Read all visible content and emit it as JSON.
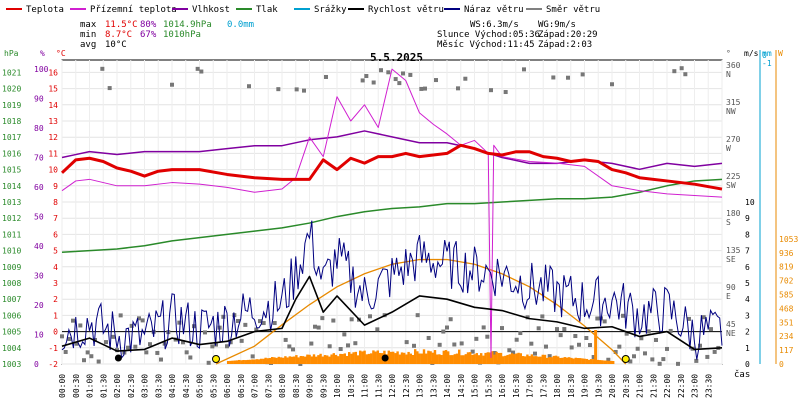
{
  "chart_data": {
    "type": "line",
    "title": "5.5.2025",
    "legend": [
      {
        "name": "Teplota",
        "color": "#e00000"
      },
      {
        "name": "Přízemní teplota",
        "color": "#d020d0"
      },
      {
        "name": "Vlhkost",
        "color": "#8000a0"
      },
      {
        "name": "Tlak",
        "color": "#2a8a2a"
      },
      {
        "name": "Srážky",
        "color": "#00a0d0"
      },
      {
        "name": "Rychlost větru",
        "color": "#000000"
      },
      {
        "name": "Náraz větru",
        "color": "#000080"
      },
      {
        "name": "Směr větru",
        "color": "#808080"
      }
    ],
    "stats": {
      "max": {
        "label": "max",
        "temp": "11.5°C",
        "hum": "80%",
        "press": "1014.9hPa",
        "rain": "0.0mm"
      },
      "min": {
        "label": "min",
        "temp": "8.7°C",
        "hum": "67%",
        "press": "1010hPa"
      },
      "avg": {
        "label": "avg",
        "temp": "10°C"
      }
    },
    "info": {
      "ws": "WS:6.3m/s",
      "wg": "WG:9m/s",
      "sun": "Slunce Východ:05:36",
      "sun_set": "Západ:20:29",
      "moon": "Měsíc Východ:11:45",
      "moon_set": "Západ:2:03"
    },
    "axis_units": {
      "hpa": "hPa",
      "pct": "%",
      "deg": "°C",
      "deg_right": "°",
      "ms": "m/s",
      "mm": "mm",
      "w": "W",
      "x": "čas"
    },
    "pressure_ticks": [
      "1003",
      "1004",
      "1005",
      "1006",
      "1007",
      "1008",
      "1009",
      "1010",
      "1011",
      "1012",
      "1013",
      "1014",
      "1015",
      "1016",
      "1017",
      "1018",
      "1019",
      "1020",
      "1021"
    ],
    "humidity_ticks": [
      "0",
      "10",
      "20",
      "30",
      "40",
      "50",
      "60",
      "70",
      "80",
      "90",
      "100"
    ],
    "temp_ticks": [
      "-2",
      "-1",
      "0",
      "1",
      "2",
      "3",
      "4",
      "5",
      "6",
      "7",
      "8",
      "9",
      "10",
      "11",
      "12",
      "13",
      "14",
      "15",
      "16"
    ],
    "dir_ticks": [
      {
        "v": "360",
        "l": "N"
      },
      {
        "v": "315",
        "l": "NW"
      },
      {
        "v": "270",
        "l": "W"
      },
      {
        "v": "225",
        "l": "SW"
      },
      {
        "v": "180",
        "l": "S"
      },
      {
        "v": "135",
        "l": "SE"
      },
      {
        "v": "90",
        "l": "E"
      },
      {
        "v": "45",
        "l": "NE"
      }
    ],
    "ms_ticks": [
      "0",
      "1",
      "2",
      "3",
      "4",
      "5",
      "6",
      "7",
      "8",
      "9",
      "10"
    ],
    "mm_ticks": [
      "0",
      "-1"
    ],
    "w_ticks": [
      "0",
      "117",
      "234",
      "351",
      "468",
      "585",
      "702",
      "819",
      "936",
      "1053"
    ],
    "time_labels": [
      "00:00",
      "00:30",
      "01:00",
      "01:30",
      "02:00",
      "02:30",
      "03:00",
      "03:30",
      "04:00",
      "04:30",
      "05:00",
      "05:30",
      "06:00",
      "06:30",
      "07:00",
      "07:30",
      "08:00",
      "08:30",
      "09:00",
      "09:30",
      "10:00",
      "10:30",
      "11:00",
      "11:30",
      "12:00",
      "12:30",
      "13:00",
      "13:30",
      "14:00",
      "14:30",
      "15:00",
      "15:30",
      "16:00",
      "16:30",
      "17:00",
      "17:30",
      "18:00",
      "18:30",
      "19:00",
      "19:30",
      "20:00",
      "20:30",
      "21:00",
      "21:30",
      "22:00",
      "22:30",
      "23:00",
      "23:30"
    ],
    "series": {
      "teplota": {
        "color": "#e00000",
        "x": [
          0,
          0.5,
          1,
          1.5,
          2,
          2.5,
          3,
          3.5,
          4,
          5,
          6,
          7,
          8,
          9,
          9.5,
          10,
          10.5,
          11,
          11.5,
          12,
          12.5,
          13,
          14,
          14.5,
          15,
          15.5,
          16,
          16.5,
          17,
          17.5,
          18,
          18.5,
          19,
          19.5,
          20,
          20.5,
          21,
          22,
          23,
          24
        ],
        "y": [
          9.8,
          10.6,
          10.7,
          10.5,
          10.1,
          9.9,
          9.6,
          9.9,
          10.0,
          10.0,
          9.7,
          9.5,
          9.4,
          9.4,
          10.6,
          10.0,
          10.7,
          10.4,
          10.8,
          10.8,
          11.0,
          10.8,
          11.0,
          11.5,
          11.3,
          11.0,
          10.9,
          11.1,
          11.1,
          10.8,
          10.7,
          10.5,
          10.6,
          10.5,
          10.0,
          9.8,
          9.5,
          9.3,
          9.1,
          8.8
        ]
      },
      "prizemni": {
        "color": "#d020d0",
        "x": [
          0,
          0.5,
          1,
          2,
          3,
          4,
          5,
          6,
          7,
          8,
          8.5,
          9,
          9.5,
          10,
          10.5,
          11,
          11.5,
          12,
          12.5,
          13,
          13.5,
          14,
          14.5,
          15,
          15.5,
          15.6,
          15.7,
          16,
          17,
          18,
          19,
          20,
          21,
          22,
          23,
          24
        ],
        "y": [
          8.7,
          9.3,
          9.4,
          9.0,
          9.0,
          9.2,
          9.1,
          8.9,
          8.6,
          8.8,
          9.5,
          12.0,
          10.8,
          14.5,
          13.0,
          14.0,
          12.6,
          16.2,
          15.5,
          13.5,
          12.8,
          12.2,
          11.5,
          11.8,
          11.0,
          -1.6,
          11.5,
          10.8,
          10.5,
          10.4,
          10.2,
          9.0,
          8.7,
          8.5,
          8.4,
          8.3
        ]
      },
      "vlhkost": {
        "color": "#8000a0",
        "x": [
          0,
          0.5,
          1,
          2,
          3,
          4,
          5,
          6,
          7,
          8,
          9,
          10,
          11,
          12,
          13,
          14,
          15,
          16,
          17,
          18,
          19,
          20,
          21,
          22,
          23,
          24
        ],
        "y": [
          70,
          71,
          72,
          71,
          72,
          72,
          72,
          73,
          74,
          74,
          76,
          77,
          79,
          77,
          75,
          75,
          73,
          70,
          68,
          68,
          69,
          68,
          66,
          68,
          67,
          68
        ]
      },
      "tlak": {
        "color": "#2a8a2a",
        "x": [
          0,
          1,
          2,
          3,
          4,
          5,
          6,
          7,
          8,
          9,
          10,
          11,
          12,
          13,
          14,
          15,
          16,
          17,
          18,
          19,
          20,
          21,
          22,
          23,
          24
        ],
        "y": [
          1009.9,
          1010.0,
          1010.1,
          1010.3,
          1010.6,
          1010.8,
          1011.0,
          1011.2,
          1011.4,
          1011.7,
          1012.1,
          1012.4,
          1012.6,
          1012.7,
          1012.9,
          1012.9,
          1013.0,
          1013.1,
          1013.2,
          1013.2,
          1013.3,
          1013.6,
          1014.0,
          1014.3,
          1014.4
        ]
      },
      "rychlost": {
        "color": "#000000",
        "x": [
          0,
          1,
          2,
          3,
          4,
          5,
          6,
          7,
          8,
          8.5,
          9,
          9.5,
          10,
          11,
          12,
          13,
          14,
          15,
          16,
          17,
          18,
          19,
          20,
          21,
          22,
          23,
          24
        ],
        "y": [
          1.1,
          1.6,
          0.8,
          0.9,
          1.6,
          1.2,
          1.4,
          2.0,
          2.2,
          4.0,
          5.4,
          3.2,
          4.2,
          2.4,
          3.2,
          4.2,
          4.0,
          3.5,
          3.3,
          2.8,
          2.6,
          2.2,
          2.3,
          1.7,
          2.0,
          0.9,
          1.0
        ]
      },
      "naraz": {
        "color": "#000080",
        "x": [
          0,
          1,
          2,
          3,
          4,
          5,
          6,
          7,
          8,
          8.5,
          9,
          9.5,
          10,
          11,
          12,
          13,
          14,
          15,
          16,
          17,
          18,
          19,
          20,
          21,
          22,
          23,
          24
        ],
        "y": [
          2.0,
          2.6,
          1.8,
          1.6,
          2.8,
          2.2,
          2.6,
          3.4,
          3.8,
          5.6,
          8.0,
          5.0,
          6.6,
          4.2,
          5.4,
          6.6,
          6.2,
          5.8,
          5.6,
          4.8,
          4.4,
          3.8,
          4.0,
          3.0,
          3.4,
          1.8,
          2.0
        ]
      },
      "solar": {
        "color": "#e88a00",
        "x": [
          5.6,
          7,
          8,
          9,
          10,
          11,
          12,
          13,
          14,
          15,
          16,
          17,
          18,
          19,
          20,
          20.5
        ],
        "y": [
          0,
          150,
          330,
          500,
          650,
          760,
          840,
          880,
          880,
          840,
          760,
          650,
          500,
          320,
          120,
          0
        ]
      }
    }
  }
}
